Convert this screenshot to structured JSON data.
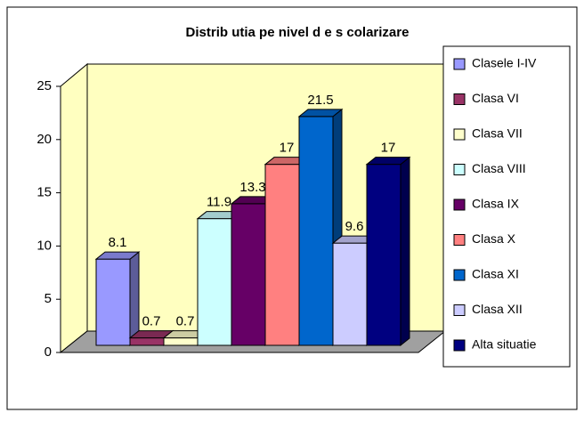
{
  "chart_data": {
    "type": "bar3d",
    "title": "Distrib utia pe  nivel d e s colarizare",
    "series": [
      {
        "name": "Clasele I-IV",
        "color": "#9999ff",
        "values": [
          8.1
        ]
      },
      {
        "name": "Clasa VI",
        "color": "#993366",
        "values": [
          0.7
        ]
      },
      {
        "name": "Clasa VII",
        "color": "#ffffcc",
        "values": [
          0.7
        ]
      },
      {
        "name": "Clasa VIII",
        "color": "#ccffff",
        "values": [
          11.9
        ]
      },
      {
        "name": "Clasa IX",
        "color": "#660066",
        "values": [
          13.3
        ]
      },
      {
        "name": "Clasa X",
        "color": "#ff8080",
        "values": [
          17
        ]
      },
      {
        "name": "Clasa XI",
        "color": "#0066cc",
        "values": [
          21.5
        ]
      },
      {
        "name": "Clasa XII",
        "color": "#ccccff",
        "values": [
          9.6
        ]
      },
      {
        "name": "Alta situatie",
        "color": "#000080",
        "values": [
          17
        ]
      }
    ],
    "ylim": [
      0,
      25
    ],
    "yticks": [
      0,
      5,
      10,
      15,
      20,
      25
    ],
    "grid": false,
    "legend": "right"
  }
}
